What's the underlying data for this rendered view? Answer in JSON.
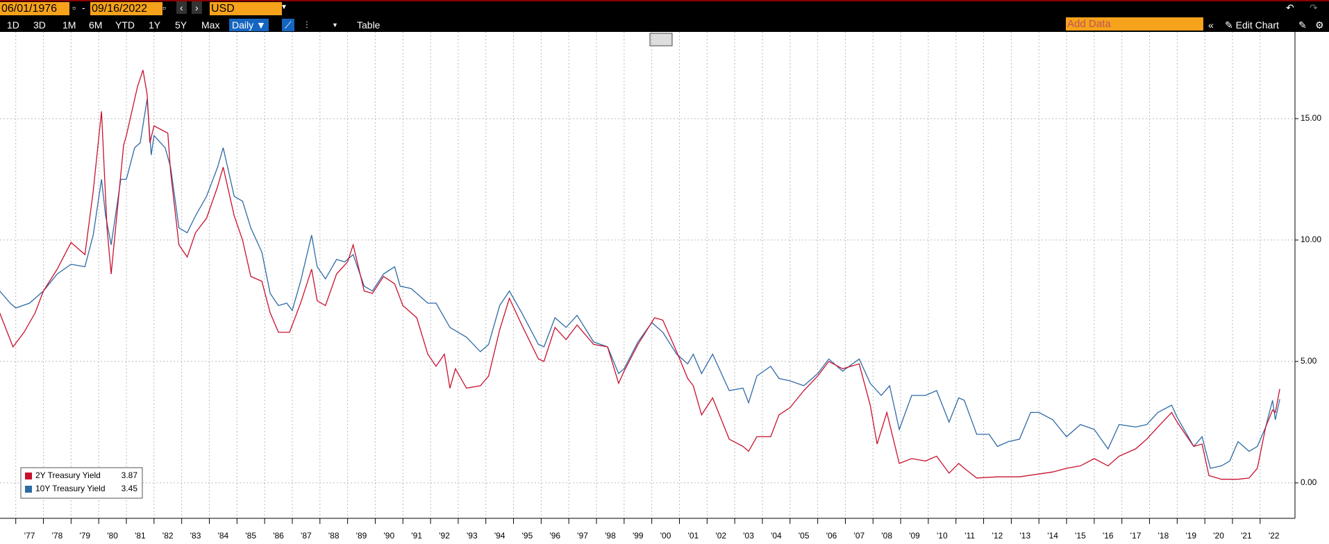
{
  "toolbar": {
    "start_date": "06/01/1976",
    "end_date": "09/16/2022",
    "currency": "USD",
    "ranges": [
      "1D",
      "3D",
      "1M",
      "6M",
      "YTD",
      "1Y",
      "5Y",
      "Max"
    ],
    "frequency": "Daily ▼",
    "table": "Table",
    "add_data": "Add Data",
    "edit_chart": "Edit Chart"
  },
  "chart_data": {
    "type": "line",
    "xlim": [
      1976.43,
      2023.26
    ],
    "ylim": [
      -1.46,
      18.57
    ],
    "xticks": [
      {
        "value": 1977,
        "label": "'77"
      },
      {
        "value": 1978,
        "label": "'78"
      },
      {
        "value": 1979,
        "label": "'79"
      },
      {
        "value": 1980,
        "label": "'80"
      },
      {
        "value": 1981,
        "label": "'81"
      },
      {
        "value": 1982,
        "label": "'82"
      },
      {
        "value": 1983,
        "label": "'83"
      },
      {
        "value": 1984,
        "label": "'84"
      },
      {
        "value": 1985,
        "label": "'85"
      },
      {
        "value": 1986,
        "label": "'86"
      },
      {
        "value": 1987,
        "label": "'87"
      },
      {
        "value": 1988,
        "label": "'88"
      },
      {
        "value": 1989,
        "label": "'89"
      },
      {
        "value": 1990,
        "label": "'90"
      },
      {
        "value": 1991,
        "label": "'91"
      },
      {
        "value": 1992,
        "label": "'92"
      },
      {
        "value": 1993,
        "label": "'93"
      },
      {
        "value": 1994,
        "label": "'94"
      },
      {
        "value": 1995,
        "label": "'95"
      },
      {
        "value": 1996,
        "label": "'96"
      },
      {
        "value": 1997,
        "label": "'97"
      },
      {
        "value": 1998,
        "label": "'98"
      },
      {
        "value": 1999,
        "label": "'99"
      },
      {
        "value": 2000,
        "label": "'00"
      },
      {
        "value": 2001,
        "label": "'01"
      },
      {
        "value": 2002,
        "label": "'02"
      },
      {
        "value": 2003,
        "label": "'03"
      },
      {
        "value": 2004,
        "label": "'04"
      },
      {
        "value": 2005,
        "label": "'05"
      },
      {
        "value": 2006,
        "label": "'06"
      },
      {
        "value": 2007,
        "label": "'07"
      },
      {
        "value": 2008,
        "label": "'08"
      },
      {
        "value": 2009,
        "label": "'09"
      },
      {
        "value": 2010,
        "label": "'10"
      },
      {
        "value": 2011,
        "label": "'11"
      },
      {
        "value": 2012,
        "label": "'12"
      },
      {
        "value": 2013,
        "label": "'13"
      },
      {
        "value": 2014,
        "label": "'14"
      },
      {
        "value": 2015,
        "label": "'15"
      },
      {
        "value": 2016,
        "label": "'16"
      },
      {
        "value": 2017,
        "label": "'17"
      },
      {
        "value": 2018,
        "label": "'18"
      },
      {
        "value": 2019,
        "label": "'19"
      },
      {
        "value": 2020,
        "label": "'20"
      },
      {
        "value": 2021,
        "label": "'21"
      },
      {
        "value": 2022,
        "label": "'22"
      }
    ],
    "yticks": [
      {
        "value": 0,
        "label": "0.00"
      },
      {
        "value": 5,
        "label": "5.00"
      },
      {
        "value": 10,
        "label": "10.00"
      },
      {
        "value": 15,
        "label": "15.00"
      }
    ],
    "grid": true,
    "legend": "lower left",
    "series": [
      {
        "name": "2Y Treasury Yield",
        "legend_value": 3.87,
        "color": "#c8102e",
        "x": [
          1976.42,
          1976.9,
          1977.3,
          1977.7,
          1978.0,
          1978.5,
          1979.0,
          1979.5,
          1979.8,
          1980.1,
          1980.3,
          1980.45,
          1980.9,
          1981.0,
          1981.4,
          1981.6,
          1981.75,
          1981.85,
          1982.0,
          1982.5,
          1982.6,
          1982.9,
          1983.2,
          1983.5,
          1983.9,
          1984.3,
          1984.5,
          1984.9,
          1985.2,
          1985.5,
          1985.9,
          1986.2,
          1986.5,
          1986.9,
          1987.3,
          1987.7,
          1987.9,
          1988.2,
          1988.6,
          1989.0,
          1989.2,
          1989.6,
          1989.9,
          1990.3,
          1990.7,
          1991.0,
          1991.5,
          1991.9,
          1992.2,
          1992.5,
          1992.7,
          1992.9,
          1993.3,
          1993.8,
          1994.1,
          1994.5,
          1994.85,
          1995.3,
          1995.9,
          1996.1,
          1996.5,
          1996.9,
          1997.3,
          1997.9,
          1998.4,
          1998.8,
          1999.0,
          1999.5,
          2000.1,
          2000.4,
          2000.9,
          2001.3,
          2001.5,
          2001.8,
          2002.2,
          2002.8,
          2003.3,
          2003.5,
          2003.8,
          2004.3,
          2004.6,
          2005.0,
          2005.5,
          2006.0,
          2006.4,
          2006.9,
          2007.5,
          2007.9,
          2008.15,
          2008.5,
          2008.95,
          2009.4,
          2009.9,
          2010.3,
          2010.75,
          2011.1,
          2011.3,
          2011.75,
          2012.5,
          2013.3,
          2013.9,
          2014.5,
          2015.0,
          2015.5,
          2016.0,
          2016.5,
          2016.9,
          2017.5,
          2017.9,
          2018.3,
          2018.8,
          2019.0,
          2019.6,
          2019.9,
          2020.15,
          2020.6,
          2020.9,
          2021.2,
          2021.6,
          2021.9,
          2022.2,
          2022.45,
          2022.55,
          2022.71
        ],
        "values": [
          7.0,
          5.6,
          6.2,
          7.0,
          7.9,
          8.8,
          9.9,
          9.4,
          12.0,
          15.3,
          10.5,
          8.6,
          13.9,
          14.3,
          16.3,
          17.0,
          16.0,
          14.0,
          14.7,
          14.4,
          12.8,
          9.8,
          9.3,
          10.3,
          10.9,
          12.2,
          13.0,
          11.0,
          10.0,
          8.5,
          8.3,
          7.0,
          6.2,
          6.2,
          7.4,
          8.8,
          7.5,
          7.3,
          8.6,
          9.1,
          9.8,
          7.9,
          7.8,
          8.5,
          8.2,
          7.3,
          6.8,
          5.3,
          4.8,
          5.3,
          3.9,
          4.7,
          3.9,
          4.0,
          4.4,
          6.3,
          7.6,
          6.5,
          5.1,
          5.0,
          6.4,
          5.9,
          6.5,
          5.7,
          5.6,
          4.1,
          4.6,
          5.7,
          6.8,
          6.7,
          5.4,
          4.3,
          4.0,
          2.8,
          3.5,
          1.8,
          1.5,
          1.3,
          1.9,
          1.9,
          2.8,
          3.1,
          3.8,
          4.4,
          5.0,
          4.7,
          4.9,
          3.2,
          1.6,
          2.9,
          0.8,
          1.0,
          0.9,
          1.1,
          0.4,
          0.8,
          0.6,
          0.2,
          0.25,
          0.25,
          0.35,
          0.45,
          0.6,
          0.7,
          1.0,
          0.7,
          1.1,
          1.4,
          1.8,
          2.3,
          2.9,
          2.5,
          1.5,
          1.6,
          0.3,
          0.15,
          0.15,
          0.15,
          0.2,
          0.6,
          2.3,
          3.0,
          2.9,
          3.87
        ]
      },
      {
        "name": "10Y Treasury Yield",
        "legend_value": 3.45,
        "color": "#2e6aa6",
        "x": [
          1976.42,
          1976.8,
          1977.0,
          1977.5,
          1978.0,
          1978.5,
          1979.0,
          1979.5,
          1979.8,
          1980.1,
          1980.25,
          1980.45,
          1980.8,
          1981.0,
          1981.3,
          1981.5,
          1981.75,
          1981.9,
          1982.0,
          1982.4,
          1982.6,
          1982.9,
          1983.2,
          1983.5,
          1983.9,
          1984.3,
          1984.5,
          1984.9,
          1985.2,
          1985.5,
          1985.9,
          1986.2,
          1986.5,
          1986.8,
          1987.0,
          1987.3,
          1987.7,
          1987.9,
          1988.2,
          1988.6,
          1988.9,
          1989.2,
          1989.6,
          1989.9,
          1990.3,
          1990.7,
          1990.9,
          1991.3,
          1991.9,
          1992.2,
          1992.7,
          1993.3,
          1993.8,
          1994.1,
          1994.5,
          1994.85,
          1995.3,
          1995.9,
          1996.1,
          1996.5,
          1996.9,
          1997.3,
          1997.9,
          1998.4,
          1998.8,
          1999.0,
          1999.5,
          2000.0,
          2000.4,
          2000.9,
          2001.3,
          2001.5,
          2001.8,
          2002.2,
          2002.8,
          2003.3,
          2003.5,
          2003.8,
          2004.3,
          2004.6,
          2005.0,
          2005.5,
          2006.0,
          2006.4,
          2006.9,
          2007.5,
          2007.9,
          2008.3,
          2008.6,
          2008.95,
          2009.4,
          2009.9,
          2010.3,
          2010.75,
          2011.1,
          2011.3,
          2011.75,
          2012.2,
          2012.5,
          2012.9,
          2013.3,
          2013.7,
          2014.0,
          2014.5,
          2015.0,
          2015.5,
          2016.0,
          2016.5,
          2016.9,
          2017.5,
          2017.9,
          2018.3,
          2018.8,
          2019.0,
          2019.6,
          2019.9,
          2020.2,
          2020.6,
          2020.9,
          2021.2,
          2021.6,
          2021.9,
          2022.2,
          2022.45,
          2022.55,
          2022.71
        ],
        "values": [
          7.9,
          7.4,
          7.2,
          7.4,
          7.9,
          8.6,
          9.0,
          8.9,
          10.2,
          12.5,
          11.0,
          9.8,
          12.5,
          12.5,
          13.8,
          14.0,
          15.8,
          13.5,
          14.3,
          13.8,
          13.0,
          10.5,
          10.3,
          11.0,
          11.8,
          13.0,
          13.8,
          11.8,
          11.6,
          10.5,
          9.5,
          7.8,
          7.3,
          7.4,
          7.1,
          8.3,
          10.2,
          8.9,
          8.4,
          9.2,
          9.1,
          9.4,
          8.1,
          7.9,
          8.6,
          8.9,
          8.1,
          8.0,
          7.4,
          7.4,
          6.4,
          6.0,
          5.4,
          5.7,
          7.3,
          7.9,
          7.0,
          5.7,
          5.6,
          6.8,
          6.4,
          6.9,
          5.8,
          5.6,
          4.5,
          4.7,
          5.8,
          6.6,
          6.2,
          5.3,
          4.9,
          5.3,
          4.5,
          5.3,
          3.8,
          3.9,
          3.3,
          4.4,
          4.8,
          4.3,
          4.2,
          4.0,
          4.5,
          5.1,
          4.6,
          5.1,
          4.1,
          3.6,
          4.0,
          2.2,
          3.6,
          3.6,
          3.8,
          2.5,
          3.5,
          3.4,
          2.0,
          2.0,
          1.5,
          1.7,
          1.8,
          2.9,
          2.9,
          2.6,
          1.9,
          2.4,
          2.2,
          1.4,
          2.4,
          2.3,
          2.4,
          2.9,
          3.2,
          2.7,
          1.5,
          1.9,
          0.6,
          0.7,
          0.9,
          1.7,
          1.3,
          1.5,
          2.3,
          3.4,
          2.6,
          3.45
        ]
      }
    ]
  }
}
